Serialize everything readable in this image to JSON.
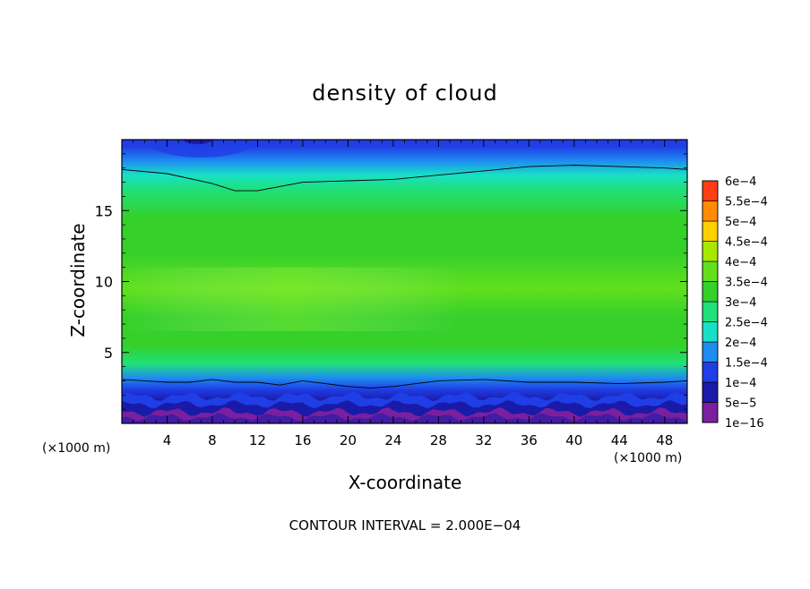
{
  "chart_data": {
    "type": "heatmap",
    "title": "density of cloud",
    "xlabel": "X-coordinate",
    "ylabel": "Z-coordinate",
    "x_unit_left": "(×1000 m)",
    "x_unit_right": "(×1000 m)",
    "xlim": [
      0,
      50
    ],
    "ylim": [
      0,
      20
    ],
    "x_ticks": [
      {
        "value": 4,
        "label": "4"
      },
      {
        "value": 8,
        "label": "8"
      },
      {
        "value": 12,
        "label": "12"
      },
      {
        "value": 16,
        "label": "16"
      },
      {
        "value": 20,
        "label": "20"
      },
      {
        "value": 24,
        "label": "24"
      },
      {
        "value": 28,
        "label": "28"
      },
      {
        "value": 32,
        "label": "32"
      },
      {
        "value": 36,
        "label": "36"
      },
      {
        "value": 40,
        "label": "40"
      },
      {
        "value": 44,
        "label": "44"
      },
      {
        "value": 48,
        "label": "48"
      }
    ],
    "y_ticks": [
      {
        "value": 5,
        "label": "5"
      },
      {
        "value": 10,
        "label": "10"
      },
      {
        "value": 15,
        "label": "15"
      }
    ],
    "colorbar": {
      "levels": [
        {
          "value": 1e-16,
          "label": "1e−16",
          "color": "#7a1fa0"
        },
        {
          "value": 5e-05,
          "label": "5e−5",
          "color": "#1a1aa8"
        },
        {
          "value": 0.0001,
          "label": "1e−4",
          "color": "#1f3ee6"
        },
        {
          "value": 0.00015,
          "label": "1.5e−4",
          "color": "#1e8cf0"
        },
        {
          "value": 0.0002,
          "label": "2e−4",
          "color": "#18e0c6"
        },
        {
          "value": 0.00025,
          "label": "2.5e−4",
          "color": "#1fe07a"
        },
        {
          "value": 0.0003,
          "label": "3e−4",
          "color": "#35d02a"
        },
        {
          "value": 0.00035,
          "label": "3.5e−4",
          "color": "#62e01e"
        },
        {
          "value": 0.0004,
          "label": "4e−4",
          "color": "#a8e800"
        },
        {
          "value": 0.00045,
          "label": "4.5e−4",
          "color": "#ffd000"
        },
        {
          "value": 0.0005,
          "label": "5e−4",
          "color": "#ff8c00"
        },
        {
          "value": 0.00055,
          "label": "5.5e−4",
          "color": "#ff3c14"
        },
        {
          "value": 0.0006,
          "label": "6e−4",
          "color": "#ff8888"
        }
      ]
    },
    "contour_interval_text": "CONTOUR INTERVAL = 2.000E−04",
    "profile_by_z": [
      {
        "z": 0.3,
        "value": 4e-05
      },
      {
        "z": 1.0,
        "value": 6e-05
      },
      {
        "z": 1.6,
        "value": 9e-05
      },
      {
        "z": 2.4,
        "value": 0.00014
      },
      {
        "z": 3.2,
        "value": 0.00019
      },
      {
        "z": 4.2,
        "value": 0.00025
      },
      {
        "z": 5.5,
        "value": 0.00031
      },
      {
        "z": 7.5,
        "value": 0.00033
      },
      {
        "z": 9.5,
        "value": 0.00035
      },
      {
        "z": 12.0,
        "value": 0.00033
      },
      {
        "z": 14.5,
        "value": 0.0003
      },
      {
        "z": 16.5,
        "value": 0.00025
      },
      {
        "z": 17.5,
        "value": 0.000205
      },
      {
        "z": 18.5,
        "value": 0.00016
      },
      {
        "z": 19.5,
        "value": 0.00012
      },
      {
        "z": 20.0,
        "value": 0.0001
      }
    ],
    "contour_lines": [
      {
        "value": 0.0002,
        "points": [
          [
            0,
            17.9
          ],
          [
            4,
            17.6
          ],
          [
            8,
            16.9
          ],
          [
            10,
            16.4
          ],
          [
            12,
            16.4
          ],
          [
            16,
            17.0
          ],
          [
            20,
            17.1
          ],
          [
            24,
            17.2
          ],
          [
            28,
            17.5
          ],
          [
            32,
            17.8
          ],
          [
            36,
            18.1
          ],
          [
            40,
            18.2
          ],
          [
            44,
            18.1
          ],
          [
            48,
            18.0
          ],
          [
            50,
            17.9
          ]
        ]
      },
      {
        "value": 0.0002,
        "points": [
          [
            0,
            3.1
          ],
          [
            2,
            3.0
          ],
          [
            4,
            2.9
          ],
          [
            6,
            2.9
          ],
          [
            8,
            3.1
          ],
          [
            10,
            2.9
          ],
          [
            12,
            2.9
          ],
          [
            14,
            2.7
          ],
          [
            16,
            3.0
          ],
          [
            18,
            2.8
          ],
          [
            20,
            2.6
          ],
          [
            22,
            2.5
          ],
          [
            24,
            2.6
          ],
          [
            26,
            2.8
          ],
          [
            28,
            3.0
          ],
          [
            32,
            3.1
          ],
          [
            36,
            2.9
          ],
          [
            40,
            2.9
          ],
          [
            44,
            2.8
          ],
          [
            48,
            2.9
          ],
          [
            50,
            3.0
          ]
        ]
      }
    ]
  }
}
